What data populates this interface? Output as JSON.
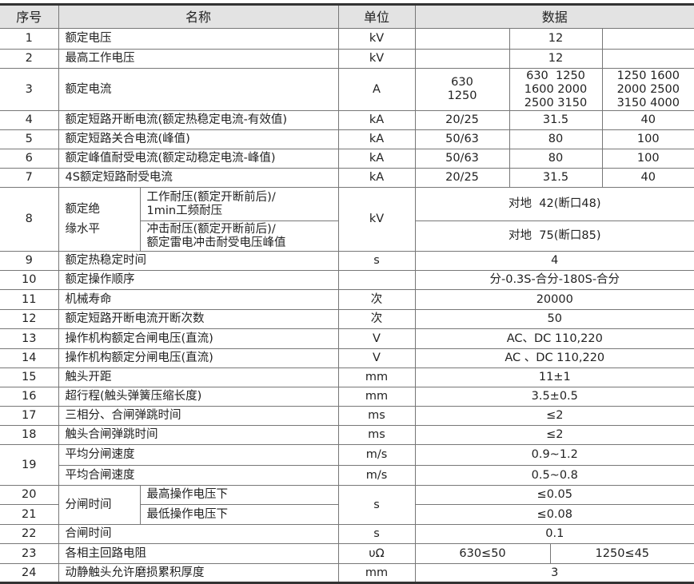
{
  "header": {
    "no": "序号",
    "name": "名称",
    "unit": "单位",
    "data": "数据"
  },
  "rows": [
    {
      "no": "1",
      "name": "额定电压",
      "unit": "kV",
      "v": [
        "",
        "12",
        ""
      ]
    },
    {
      "no": "2",
      "name": "最高工作电压",
      "unit": "kV",
      "v": [
        "",
        "12",
        ""
      ]
    },
    {
      "no": "3",
      "name": "额定电流",
      "unit": "A",
      "v": [
        [
          "630",
          "1250"
        ],
        [
          "630  1250",
          "1600 2000",
          "2500 3150"
        ],
        [
          "1250 1600",
          "2000 2500",
          "3150 4000"
        ]
      ]
    },
    {
      "no": "4",
      "name": "额定短路开断电流(额定热稳定电流-有效值)",
      "unit": "kA",
      "v": [
        "20/25",
        "31.5",
        "40"
      ]
    },
    {
      "no": "5",
      "name": "额定短路关合电流(峰值)",
      "unit": "kA",
      "v": [
        "50/63",
        "80",
        "100"
      ]
    },
    {
      "no": "6",
      "name": "额定峰值耐受电流(额定动稳定电流-峰值)",
      "unit": "kA",
      "v": [
        "50/63",
        "80",
        "100"
      ]
    },
    {
      "no": "7",
      "name": "4S额定短路耐受电流",
      "unit": "kA",
      "v": [
        "20/25",
        "31.5",
        "40"
      ]
    },
    {
      "no": "8",
      "group": [
        "额定绝",
        "缘水平"
      ],
      "unit": "kV",
      "sub": [
        {
          "name": [
            "工作耐压(额定开断前后)/",
            "1min工频耐压"
          ],
          "value": "对地  42(断口48)"
        },
        {
          "name": [
            "冲击耐压(额定开断前后)/",
            "额定雷电冲击耐受电压峰值"
          ],
          "value": "对地  75(断口85)"
        }
      ]
    },
    {
      "no": "9",
      "name": "额定热稳定时间",
      "unit": "s",
      "value": "4"
    },
    {
      "no": "10",
      "name": "额定操作顺序",
      "unit": "",
      "value": "分-0.3S-合分-180S-合分"
    },
    {
      "no": "11",
      "name": "机械寿命",
      "unit": "次",
      "value": "20000"
    },
    {
      "no": "12",
      "name": "额定短路开断电流开断次数",
      "unit": "次",
      "value": "50"
    },
    {
      "no": "13",
      "name": "操作机构额定合闸电压(直流)",
      "unit": "V",
      "value": "AC、DC 110,220"
    },
    {
      "no": "14",
      "name": "操作机构额定分闸电压(直流)",
      "unit": "V",
      "value": "AC 、DC 110,220"
    },
    {
      "no": "15",
      "name": "触头开距",
      "unit": "mm",
      "value": "11±1"
    },
    {
      "no": "16",
      "name": "超行程(触头弹簧压缩长度)",
      "unit": "mm",
      "value": "3.5±0.5"
    },
    {
      "no": "17",
      "name": "三相分、合闸弹跳时间",
      "unit": "ms",
      "value": "≤2"
    },
    {
      "no": "18",
      "name": "触头合闸弹跳时间",
      "unit": "ms",
      "value": "≤2"
    },
    {
      "no": "19",
      "sub": [
        {
          "name": "平均分闸速度",
          "unit": "m/s",
          "value": "0.9~1.2"
        },
        {
          "name": "平均合闸速度",
          "unit": "m/s",
          "value": "0.5~0.8"
        }
      ]
    },
    {
      "no": [
        "20",
        "21"
      ],
      "group": "分闸时间",
      "unit": "s",
      "sub": [
        {
          "name": "最高操作电压下",
          "value": "≤0.05"
        },
        {
          "name": "最低操作电压下",
          "value": "≤0.08"
        }
      ]
    },
    {
      "no": "22",
      "name": "合闸时间",
      "unit": "s",
      "value": "0.1"
    },
    {
      "no": "23",
      "name": "各相主回路电阻",
      "unit": "υΩ",
      "v": [
        "630≤50",
        "1250≤45"
      ]
    },
    {
      "no": "24",
      "name": "动静触头允许磨损累积厚度",
      "unit": "mm",
      "value": "3"
    }
  ]
}
